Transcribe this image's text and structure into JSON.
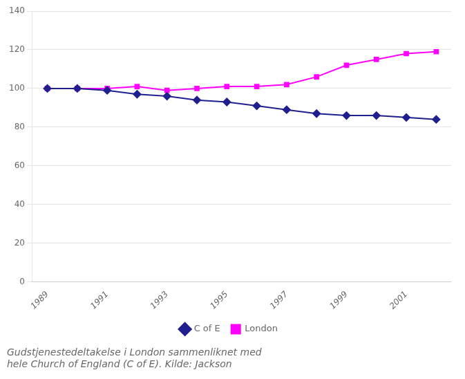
{
  "chart_data": {
    "type": "line",
    "x": [
      1989,
      1990,
      1991,
      1992,
      1993,
      1994,
      1995,
      1996,
      1997,
      1998,
      1999,
      2000,
      2001,
      2002
    ],
    "series": [
      {
        "name": "C of E",
        "color": "#1f1f8f",
        "marker": "diamond",
        "values": [
          100,
          100,
          99,
          97,
          96,
          94,
          93,
          91,
          89,
          87,
          86,
          86,
          85,
          84
        ]
      },
      {
        "name": "London",
        "color": "#ff00ff",
        "marker": "square",
        "values": [
          100,
          100,
          100,
          101,
          99,
          100,
          101,
          101,
          102,
          106,
          112,
          115,
          118,
          119
        ]
      }
    ],
    "xlim": [
      1988.5,
      2002.5
    ],
    "xticks": [
      1989,
      1991,
      1993,
      1995,
      1997,
      1999,
      2001
    ],
    "ylim": [
      0,
      140
    ],
    "yticks": [
      0,
      20,
      40,
      60,
      80,
      100,
      120,
      140
    ],
    "grid": "y",
    "legend": "bottom",
    "caption": [
      "Gudstjenestedeltakelse i London sammenliknet med",
      "hele Church of England (C of E). Kilde: Jackson"
    ]
  }
}
